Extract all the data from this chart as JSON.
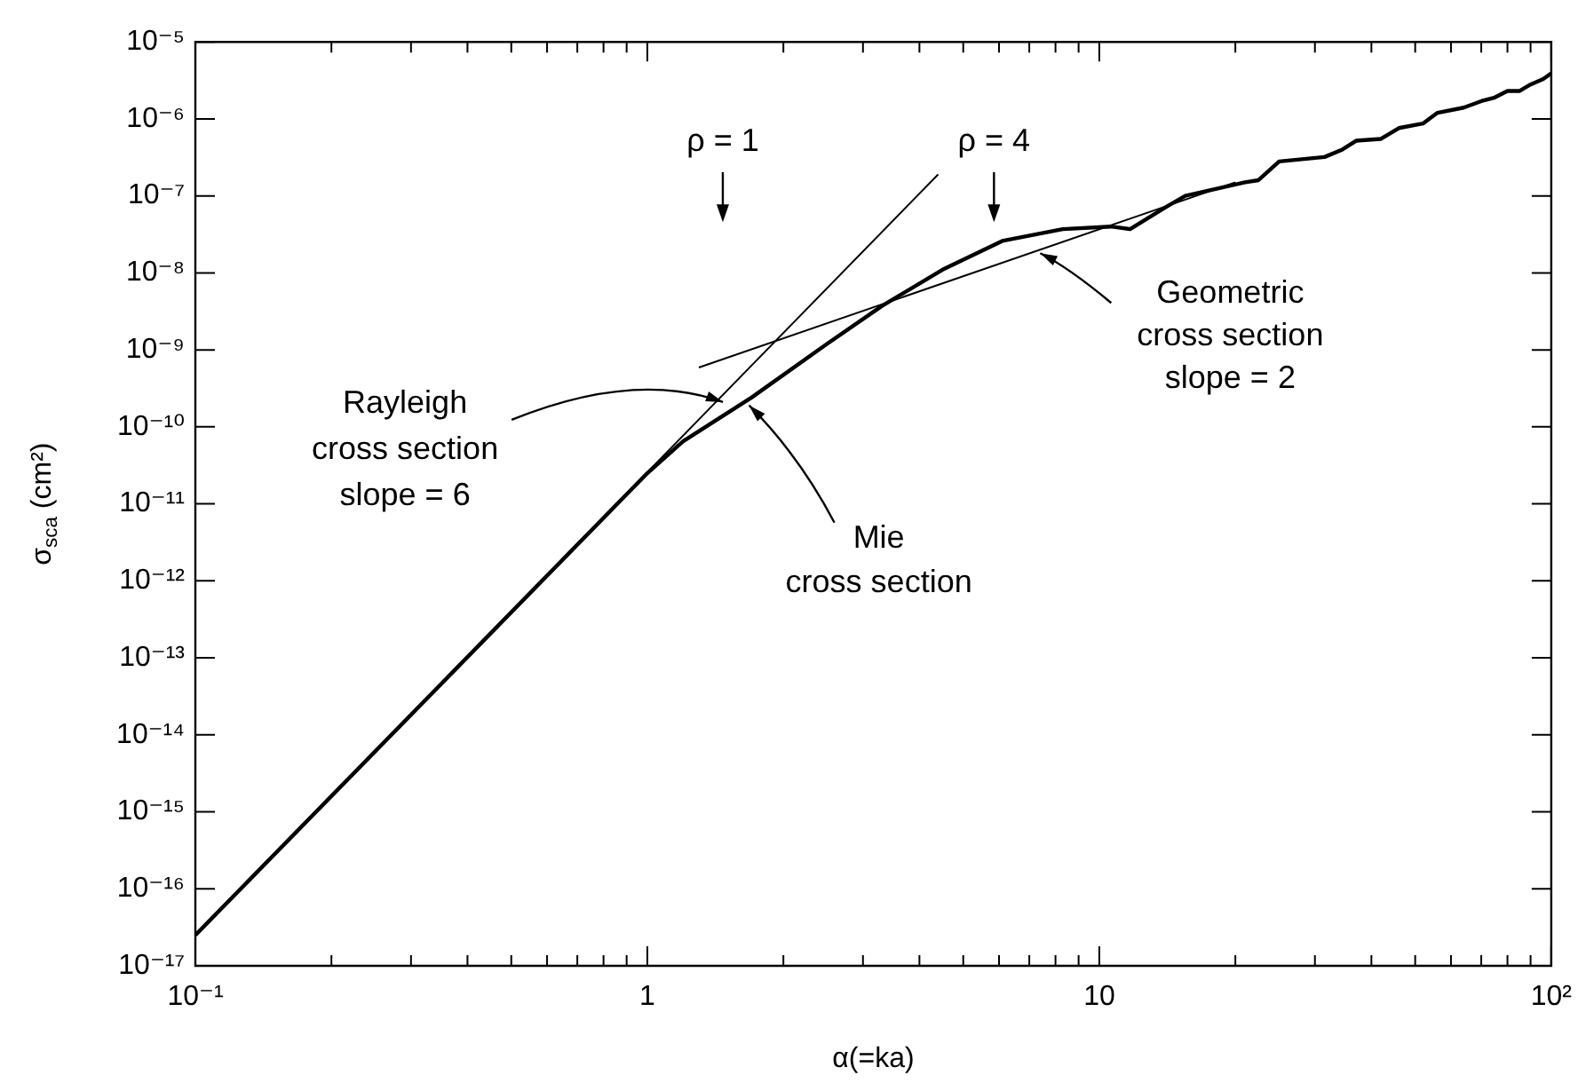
{
  "chart_data": {
    "type": "line",
    "xlabel": "α(=ka)",
    "ylabel": "σ$_{sca}$ (cm²)",
    "log": "xy",
    "grid": false,
    "legend": false,
    "marker": "none",
    "line_style": "solid",
    "xlim": [
      0.1,
      100
    ],
    "ylim": [
      1e-17,
      1e-05
    ],
    "xticks": [
      {
        "value": 0.1,
        "label": "10⁻¹"
      },
      {
        "value": 0.2,
        "label": null
      },
      {
        "value": 0.3,
        "label": null
      },
      {
        "value": 0.4,
        "label": null
      },
      {
        "value": 0.5,
        "label": null
      },
      {
        "value": 0.6,
        "label": null
      },
      {
        "value": 0.7,
        "label": null
      },
      {
        "value": 0.8,
        "label": null
      },
      {
        "value": 0.9,
        "label": null
      },
      1,
      {
        "value": 2,
        "label": null
      },
      {
        "value": 3,
        "label": null
      },
      {
        "value": 4,
        "label": null
      },
      {
        "value": 5,
        "label": null
      },
      {
        "value": 6,
        "label": null
      },
      {
        "value": 7,
        "label": null
      },
      {
        "value": 8,
        "label": null
      },
      {
        "value": 9,
        "label": null
      },
      10,
      {
        "value": 20,
        "label": null
      },
      {
        "value": 30,
        "label": null
      },
      {
        "value": 40,
        "label": null
      },
      {
        "value": 50,
        "label": null
      },
      {
        "value": 60,
        "label": null
      },
      {
        "value": 70,
        "label": null
      },
      {
        "value": 80,
        "label": null
      },
      {
        "value": 90,
        "label": null
      },
      {
        "value": 100,
        "label": "10²"
      }
    ],
    "yticks": [
      {
        "value": 1e-17,
        "label": "10⁻¹⁷"
      },
      {
        "value": 1e-16,
        "label": "10⁻¹⁶"
      },
      {
        "value": 1e-15,
        "label": "10⁻¹⁵"
      },
      {
        "value": 1e-14,
        "label": "10⁻¹⁴"
      },
      {
        "value": 1e-13,
        "label": "10⁻¹³"
      },
      {
        "value": 1e-12,
        "label": "10⁻¹²"
      },
      {
        "value": 1e-11,
        "label": "10⁻¹¹"
      },
      {
        "value": 1e-10,
        "label": "10⁻¹⁰"
      },
      {
        "value": 1e-09,
        "label": "10⁻⁹"
      },
      {
        "value": 1e-08,
        "label": "10⁻⁸"
      },
      {
        "value": 1e-07,
        "label": "10⁻⁷"
      },
      {
        "value": 1e-06,
        "label": "10⁻⁶"
      },
      {
        "value": 1e-05,
        "label": "10⁻⁵"
      }
    ],
    "series": [
      {
        "color": "#000000",
        "x": [
          0.1,
          1,
          1.2,
          1.7,
          2.5,
          3.3,
          4.5,
          6.1,
          8.3,
          10.6,
          11.7,
          14,
          15.5,
          21,
          22.5,
          25,
          31.5,
          34.5,
          37,
          42,
          46,
          52,
          56,
          64,
          70,
          75,
          80,
          85,
          90,
          96,
          100
        ],
        "values": [
          2.5e-17,
          2.5e-11,
          6.5e-11,
          2.4e-10,
          1.2e-09,
          3.7e-09,
          1.1e-08,
          2.6e-08,
          3.7e-08,
          4e-08,
          3.7e-08,
          7.1e-08,
          1e-07,
          1.5e-07,
          1.6e-07,
          2.8e-07,
          3.2e-07,
          4e-07,
          5.2e-07,
          5.5e-07,
          7.6e-07,
          8.7e-07,
          1.2e-06,
          1.4e-06,
          1.7e-06,
          1.9e-06,
          2.3e-06,
          2.3e-06,
          2.8e-06,
          3.3e-06,
          3.9e-06
        ]
      },
      {
        "color": "#000000",
        "x": [
          0.1,
          4.4
        ],
        "values": [
          2.5e-17,
          1.9e-07
        ]
      },
      {
        "color": "#000000",
        "x": [
          1.3,
          20
        ],
        "values": [
          5.9e-10,
          1.5e-07
        ]
      }
    ],
    "annotations": [
      "ρ = 1",
      "ρ = 4",
      {
        "text": "Rayleigh\ncross section\nslope = 6",
        "x": 1.47,
        "y": 2.1e-10
      },
      {
        "text": "Mie\ncross section",
        "x": 1.68,
        "y": 1.9e-10
      },
      {
        "text": "Geometric\ncross section\nslope = 2",
        "x": 7.4,
        "y": 1.8e-08
      }
    ]
  }
}
